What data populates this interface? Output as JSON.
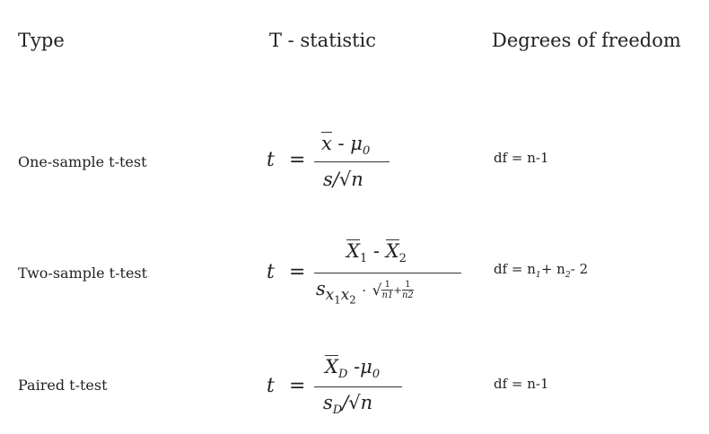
{
  "headers": {
    "type": "Type",
    "t_statistic": "T - statistic",
    "degrees_of_freedom": "Degrees of freedom"
  },
  "rows": [
    {
      "type": "One-sample t-test",
      "formula": {
        "lhs": "t",
        "eq": "=",
        "num_xbar": "x",
        "num_minus": " - ",
        "num_mu": "μ",
        "num_mu_sub": "0",
        "den": "s/√n"
      },
      "df": "df = n-1"
    },
    {
      "type": "Two-sample t-test",
      "formula": {
        "lhs": "t",
        "eq": "=",
        "num_x1": "X",
        "num_x1_sub": "1",
        "num_minus": " - ",
        "num_x2": "X",
        "num_x2_sub": "2",
        "den_s": "s",
        "den_sub_x1": "x",
        "den_sub_1": "1",
        "den_sub_x2": "x",
        "den_sub_2": "2",
        "den_dot": "·",
        "den_sqrt": "√",
        "den_frac1_num": "1",
        "den_frac1_den": "n1",
        "den_plus": "+",
        "den_frac2_num": "1",
        "den_frac2_den": "n2"
      },
      "df_prefix": "df = n",
      "df_sub1": "1",
      "df_mid": "+ n",
      "df_sub2": "2",
      "df_suffix": "- 2"
    },
    {
      "type": "Paired t-test",
      "formula": {
        "lhs": "t",
        "eq": "=",
        "num_x": "X",
        "num_x_sub": "D",
        "num_minus": " -",
        "num_mu": "μ",
        "num_mu_sub": "0",
        "den_s": "s",
        "den_s_sub": "D",
        "den_rest": "/√n"
      },
      "df": "df = n-1"
    }
  ]
}
